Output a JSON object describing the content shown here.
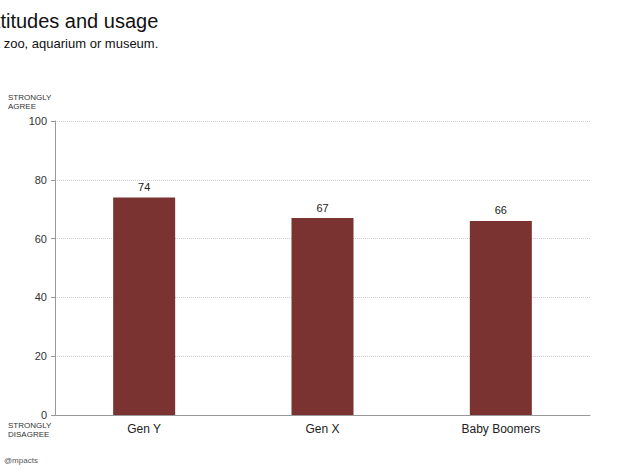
{
  "chart_data": {
    "type": "bar",
    "title": "Attitudes and usage",
    "subtitle": "I would strongly consider becoming a member of a zoo, aquarium or museum.",
    "categories": [
      "Gen Y",
      "Gen X",
      "Baby Boomers"
    ],
    "values": [
      74,
      67,
      66
    ],
    "color": "#7a3330",
    "ylim": [
      0,
      100
    ],
    "yticks": [
      0,
      20,
      40,
      60,
      80,
      100
    ],
    "grid": true,
    "data_labels": true,
    "ylabel_top": "STRONGLY AGREE",
    "ylabel_bottom": "STRONGLY DISAGREE",
    "source": "@mpacts"
  }
}
